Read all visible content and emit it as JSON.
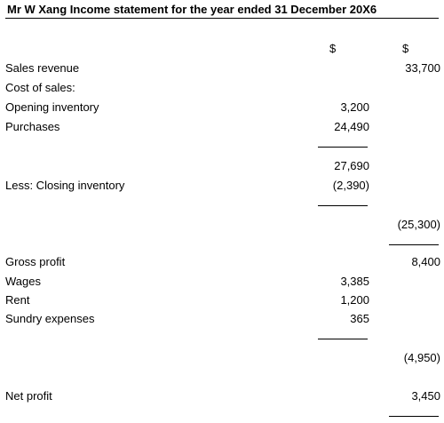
{
  "header": {
    "title": "Mr W Xang Income statement for the year ended 31 December 20X6"
  },
  "table": {
    "columns": [
      "$",
      "$"
    ],
    "rows": [
      {
        "label": "Sales revenue",
        "col2": "33,700"
      },
      {
        "label": "Cost of sales:"
      },
      {
        "label": "Opening inventory",
        "col1": "3,200"
      },
      {
        "label": "Purchases",
        "col1": "24,490"
      },
      {
        "col1": "27,690"
      },
      {
        "label": "Less: Closing inventory",
        "col1": "(2,390)"
      },
      {
        "col2": "(25,300)"
      },
      {
        "label": "Gross profit",
        "col2": "8,400"
      },
      {
        "label": "Wages",
        "col1": "3,385"
      },
      {
        "label": "Rent",
        "col1": "1,200"
      },
      {
        "label": "Sundry expenses",
        "col1": "365"
      },
      {
        "col2": "(4,950)"
      },
      {
        "label": "Net profit",
        "col2": "3,450"
      }
    ]
  }
}
